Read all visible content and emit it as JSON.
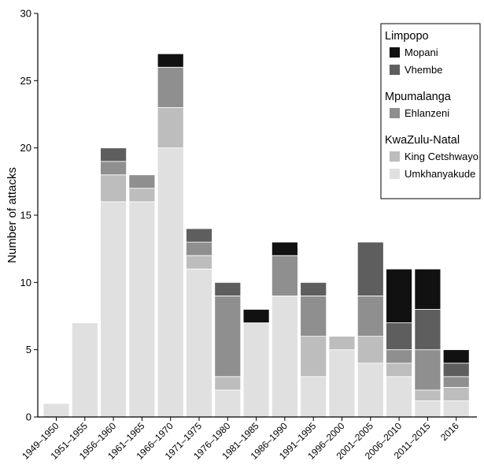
{
  "chart_data": {
    "type": "bar",
    "stacked": true,
    "ylabel": "Number of attacks",
    "xlabel": "",
    "ylim": [
      0,
      30
    ],
    "yticks": [
      0,
      5,
      10,
      15,
      20,
      25,
      30
    ],
    "grid": false,
    "legend_position": "top-right",
    "categories": [
      "1949–1950",
      "1951–1955",
      "1956–1960",
      "1961–1965",
      "1966–1970",
      "1971–1975",
      "1976–1980",
      "1981–1985",
      "1986–1990",
      "1991–1995",
      "1996–2000",
      "2001–2005",
      "2006–2010",
      "2011–2015",
      "2016"
    ],
    "legend_groups": [
      {
        "title": "Limpopo",
        "items": [
          0,
          1
        ]
      },
      {
        "title": "Mpumalanga",
        "items": [
          2
        ]
      },
      {
        "title": "KwaZulu-Natal",
        "items": [
          3,
          4
        ]
      }
    ],
    "series": [
      {
        "name": "Mopani",
        "color": "#111111",
        "values": [
          0,
          0,
          0,
          0,
          1,
          0,
          0,
          1,
          1,
          0,
          0,
          0,
          4,
          3,
          1
        ]
      },
      {
        "name": "Vhembe",
        "color": "#5e5e5e",
        "values": [
          0,
          0,
          1,
          0,
          0,
          1,
          1,
          0,
          0,
          1,
          0,
          4,
          2,
          3,
          1
        ]
      },
      {
        "name": "Ehlanzeni",
        "color": "#8f8f8f",
        "values": [
          0,
          0,
          1,
          1,
          3,
          1,
          6,
          0,
          3,
          3,
          0,
          3,
          1,
          3,
          0.8
        ]
      },
      {
        "name": "King Cetshwayo",
        "color": "#bdbdbd",
        "values": [
          0,
          0,
          2,
          1,
          3,
          1,
          1,
          0,
          0,
          3,
          1,
          2,
          1,
          0.8,
          1
        ]
      },
      {
        "name": "Umkhanyakude",
        "color": "#e0e0e0",
        "values": [
          1,
          7,
          16,
          16,
          20,
          11,
          2,
          7,
          9,
          3,
          5,
          4,
          3,
          1.2,
          1.2
        ]
      }
    ],
    "stack_order_bottom_to_top": [
      4,
      3,
      2,
      1,
      0
    ]
  }
}
